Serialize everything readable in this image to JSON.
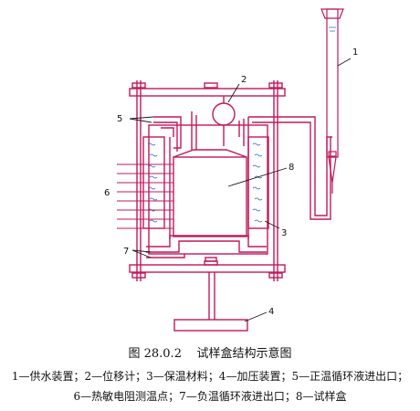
{
  "diagram": {
    "labels": {
      "n1": "1",
      "n2": "2",
      "n3": "3",
      "n4": "4",
      "n5": "5",
      "n6": "6",
      "n7": "7",
      "n8": "8"
    }
  },
  "caption": {
    "figure_number": "图 28.0.2",
    "title": "试样盒结构示意图",
    "legend_line1": "1—供水装置；2—位移计；3—保温材料；4—加压装置；5—正温循环液进出口；",
    "legend_line2": "6—热敏电阻测温点；7—负温循环液进出口；8—试样盒"
  },
  "colors": {
    "structure": "#c2185b",
    "outline": "#1a1a1a",
    "insulation_mark": "#1565c0",
    "background": "#ffffff"
  }
}
